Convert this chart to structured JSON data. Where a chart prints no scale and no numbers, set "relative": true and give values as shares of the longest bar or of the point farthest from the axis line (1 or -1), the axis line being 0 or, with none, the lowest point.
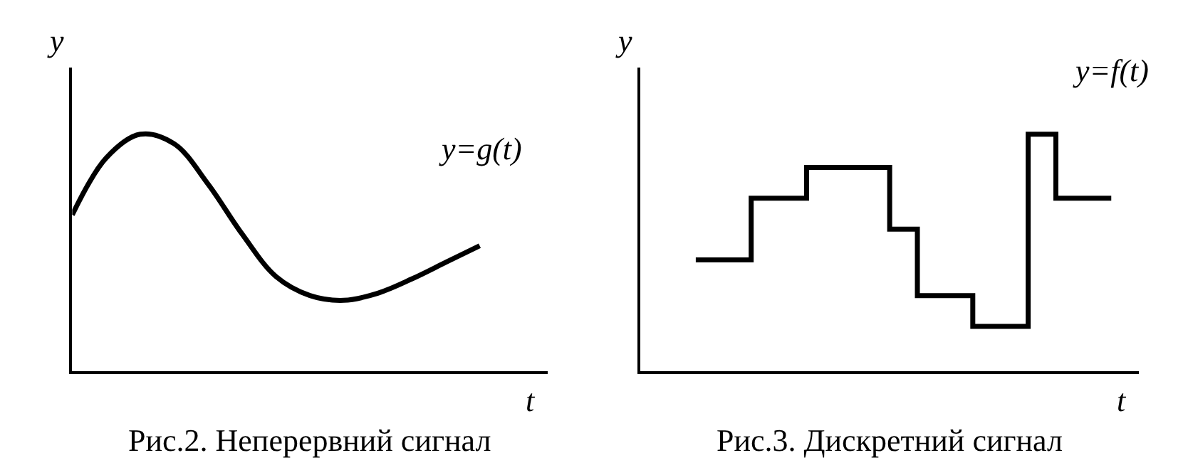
{
  "chart_data": [
    {
      "type": "line",
      "relative": true,
      "title": "Рис.2. Неперервний сигнал",
      "xlabel": "t",
      "ylabel": "y",
      "annotations": [
        "y=g(t)"
      ],
      "marker": "none",
      "line_style": "solid",
      "categories": [
        null,
        null,
        null,
        null,
        null,
        null,
        null,
        null,
        null,
        null,
        null,
        null,
        null,
        null,
        null
      ],
      "series": [
        {
          "color": "#000000",
          "values": [
            0.66,
            0.9,
            1.0,
            0.96,
            0.79,
            0.58,
            0.4,
            0.32,
            0.3,
            0.33,
            0.39,
            0.46,
            0.53,
            null,
            null
          ]
        }
      ]
    },
    {
      "type": "step",
      "relative": true,
      "title": "Рис.3. Дискретний сигнал",
      "xlabel": "t",
      "ylabel": "y",
      "annotations": [
        "y=f(t)"
      ],
      "marker": "none",
      "line_style": "solid",
      "categories": [
        null,
        null,
        null,
        null,
        null,
        null,
        null,
        null,
        null,
        null,
        null,
        null,
        null,
        null,
        null,
        null,
        null,
        null,
        null
      ],
      "series": [
        {
          "color": "#000000",
          "values": [
            null,
            null,
            0.47,
            0.47,
            0.73,
            0.73,
            0.86,
            0.86,
            0.86,
            0.6,
            0.32,
            0.32,
            0.19,
            0.19,
            1.0,
            0.73,
            0.73,
            0.73,
            null
          ]
        }
      ]
    }
  ]
}
